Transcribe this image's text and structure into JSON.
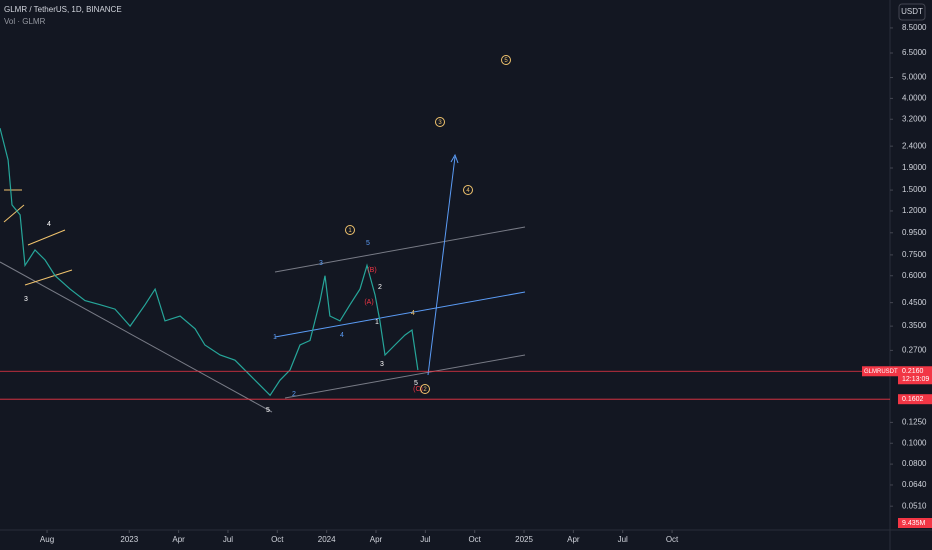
{
  "header": {
    "symbol": "GLMR / TetherUS, 1D, BINANCE",
    "volume_study": "Vol · GLMR",
    "currency_button": "USDT"
  },
  "chart_data": {
    "type": "line",
    "log_scale": true,
    "grid": false,
    "color": "#26a69a",
    "x": [
      4.14,
      4.63,
      4.87,
      5.36,
      5.66,
      6.27,
      6.88,
      7.49,
      8.4,
      9.31,
      10.22,
      11.13,
      12.05,
      12.96,
      13.57,
      14.17,
      15.09,
      16.0,
      16.6,
      17.52,
      18.43,
      19.34,
      19.95,
      20.56,
      21.16,
      21.77,
      22.38,
      22.99,
      23.6,
      23.9,
      24.2,
      24.81,
      25.42,
      26.03,
      26.45,
      26.94,
      27.24,
      27.55,
      28.15,
      28.76,
      29.19,
      29.55
    ],
    "values": [
      2.91,
      2.07,
      1.28,
      1.15,
      0.67,
      0.79,
      0.71,
      0.6,
      0.52,
      0.46,
      0.44,
      0.42,
      0.35,
      0.44,
      0.52,
      0.37,
      0.39,
      0.34,
      0.286,
      0.257,
      0.243,
      0.207,
      0.186,
      0.167,
      0.196,
      0.219,
      0.286,
      0.3,
      0.46,
      0.6,
      0.39,
      0.37,
      0.44,
      0.52,
      0.67,
      0.49,
      0.37,
      0.257,
      0.286,
      0.318,
      0.336,
      0.219
    ],
    "xlim": [
      4.14,
      58.25
    ],
    "ylim": [
      0.044,
      11.46
    ],
    "xticks": [
      {
        "value": 7,
        "label": "Aug"
      },
      {
        "value": 12,
        "label": "2023"
      },
      {
        "value": 15,
        "label": "Apr"
      },
      {
        "value": 18,
        "label": "Jul"
      },
      {
        "value": 21,
        "label": "Oct"
      },
      {
        "value": 24,
        "label": "2024"
      },
      {
        "value": 27,
        "label": "Apr"
      },
      {
        "value": 30,
        "label": "Jul"
      },
      {
        "value": 33,
        "label": "Oct"
      },
      {
        "value": 36,
        "label": "2025"
      },
      {
        "value": 39,
        "label": "Apr"
      },
      {
        "value": 42,
        "label": "Jul"
      },
      {
        "value": 45,
        "label": "Oct"
      }
    ],
    "yticks": [
      {
        "value": 8.5,
        "label": "8.5000"
      },
      {
        "value": 6.5,
        "label": "6.5000"
      },
      {
        "value": 5,
        "label": "5.0000"
      },
      {
        "value": 4,
        "label": "4.0000"
      },
      {
        "value": 3.2,
        "label": "3.2000"
      },
      {
        "value": 2.4,
        "label": "2.4000"
      },
      {
        "value": 1.9,
        "label": "1.9000"
      },
      {
        "value": 1.5,
        "label": "1.5000"
      },
      {
        "value": 1.2,
        "label": "1.2000"
      },
      {
        "value": 0.95,
        "label": "0.9500"
      },
      {
        "value": 0.75,
        "label": "0.7500"
      },
      {
        "value": 0.6,
        "label": "0.6000"
      },
      {
        "value": 0.45,
        "label": "0.4500"
      },
      {
        "value": 0.35,
        "label": "0.3500"
      },
      {
        "value": 0.27,
        "label": "0.2700"
      },
      {
        "value": 0.125,
        "label": "0.1250"
      },
      {
        "value": 0.1,
        "label": "0.1000"
      },
      {
        "value": 0.08,
        "label": "0.0800"
      },
      {
        "value": 0.064,
        "label": "0.0640"
      },
      {
        "value": 0.051,
        "label": "0.0510"
      }
    ],
    "price_tags": [
      {
        "value": 0.216,
        "label": "0.2160",
        "name": "GLMRUSDT",
        "time": "12:13:09"
      },
      {
        "value": 0.1602,
        "label": "0.1602"
      }
    ],
    "volume_label": "9.435M",
    "wave_labels": [
      "4",
      "3",
      "5",
      "(B)",
      "2",
      "(A)",
      "1",
      "3",
      "4",
      "5",
      "(C)",
      "5",
      "3",
      "1",
      "4",
      "2"
    ],
    "circled_wave_labels": [
      "1",
      "3",
      "4",
      "5",
      "2"
    ]
  }
}
